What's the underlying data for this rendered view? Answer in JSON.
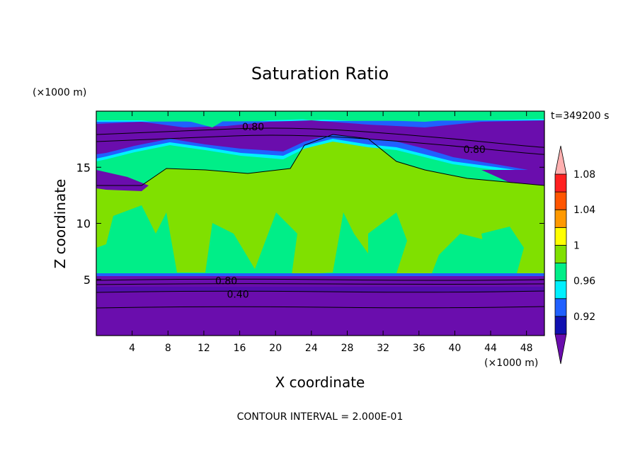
{
  "chart_data": {
    "type": "contour",
    "title": "Saturation Ratio",
    "xlabel": "X coordinate",
    "ylabel": "Z coordinate",
    "x_unit": "(×1000 m)",
    "y_unit": "(×1000 m)",
    "time_label": "t=349200 s",
    "footer": "CONTOUR INTERVAL = 2.000E-01",
    "xlim": [
      0,
      50
    ],
    "ylim": [
      0,
      20
    ],
    "x_ticks": [
      "4",
      "8",
      "12",
      "16",
      "20",
      "24",
      "28",
      "32",
      "36",
      "40",
      "44",
      "48"
    ],
    "y_ticks": [
      "5",
      "10",
      "15"
    ],
    "colorbar_labels": [
      "0.92",
      "0.96",
      "1",
      "1.04",
      "1.08"
    ],
    "colorbar_colors": [
      "#6a0dad",
      "#1010b0",
      "#2060ff",
      "#00f0ff",
      "#00ee88",
      "#80e000",
      "#ffff00",
      "#ff9900",
      "#ff5500",
      "#ff2020",
      "#ffb0b0"
    ],
    "contour_labels": [
      {
        "text": "0.80",
        "x": 17.5,
        "z": 18.6
      },
      {
        "text": "0.80",
        "x": 42.2,
        "z": 16.6
      },
      {
        "text": "0.80",
        "x": 14.5,
        "z": 4.9
      },
      {
        "text": "0.40",
        "x": 15.8,
        "z": 3.7
      }
    ]
  }
}
